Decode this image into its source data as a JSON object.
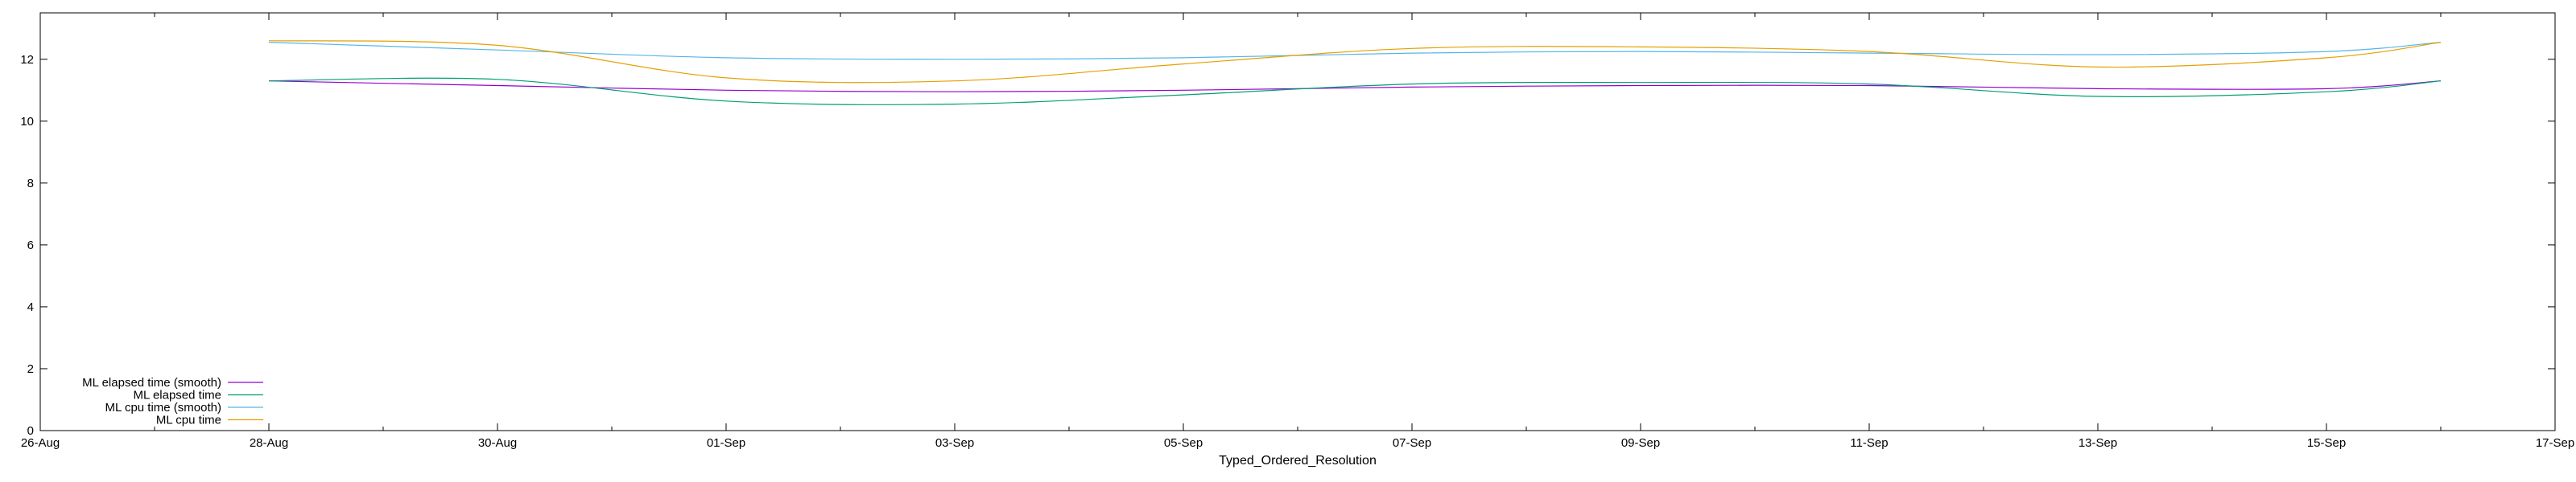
{
  "chart_data": {
    "type": "line",
    "title": "",
    "xlabel": "Typed_Ordered_Resolution",
    "ylabel": "",
    "xlim": [
      "2023-08-26",
      "2023-09-17"
    ],
    "ylim": [
      0,
      13.5
    ],
    "x_ticks": [
      "26-Aug",
      "28-Aug",
      "30-Aug",
      "01-Sep",
      "03-Sep",
      "05-Sep",
      "07-Sep",
      "09-Sep",
      "11-Sep",
      "13-Sep",
      "15-Sep",
      "17-Sep"
    ],
    "y_ticks": [
      0,
      2,
      4,
      6,
      8,
      10,
      12
    ],
    "grid": false,
    "legend_position": "bottom-left",
    "x": [
      "2023-08-28",
      "2023-08-30",
      "2023-09-01",
      "2023-09-03",
      "2023-09-05",
      "2023-09-07",
      "2023-09-09",
      "2023-09-11",
      "2023-09-13",
      "2023-09-15",
      "2023-09-16"
    ],
    "series": [
      {
        "name": "ML elapsed time (smooth)",
        "color": "#9400d3",
        "values": [
          11.3,
          11.15,
          11.0,
          10.95,
          11.0,
          11.1,
          11.15,
          11.15,
          11.05,
          11.05,
          11.3
        ]
      },
      {
        "name": "ML elapsed time",
        "color": "#009e73",
        "values": [
          11.3,
          11.35,
          10.65,
          10.55,
          10.85,
          11.2,
          11.25,
          11.2,
          10.8,
          10.95,
          11.3
        ]
      },
      {
        "name": "ML cpu time (smooth)",
        "color": "#56b4e9",
        "values": [
          12.55,
          12.3,
          12.05,
          12.0,
          12.05,
          12.2,
          12.25,
          12.2,
          12.15,
          12.25,
          12.55
        ]
      },
      {
        "name": "ML cpu time",
        "color": "#e69f00",
        "values": [
          12.6,
          12.45,
          11.4,
          11.3,
          11.85,
          12.35,
          12.4,
          12.25,
          11.75,
          12.05,
          12.55
        ]
      }
    ]
  }
}
